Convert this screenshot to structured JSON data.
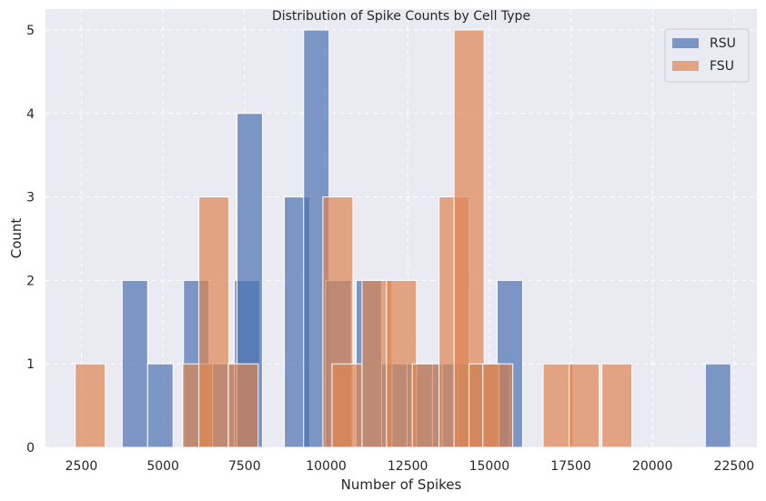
{
  "chart_data": {
    "type": "histogram",
    "title": "Distribution of Spike Counts by Cell Type",
    "xlabel": "Number of Spikes",
    "ylabel": "Count",
    "xlim": [
      1400,
      23200
    ],
    "ylim": [
      0,
      5.25
    ],
    "x_ticks": [
      2500,
      5000,
      7500,
      10000,
      12500,
      15000,
      17500,
      20000,
      22500
    ],
    "y_ticks": [
      0,
      1,
      2,
      3,
      4,
      5
    ],
    "grid": true,
    "legend_position": "top-right",
    "series": [
      {
        "name": "RSU",
        "color": "#4c72b0",
        "bin_width": 780,
        "bins": [
          {
            "x0": 3750,
            "count": 2
          },
          {
            "x0": 4530,
            "count": 1
          },
          {
            "x0": 5630,
            "count": 2
          },
          {
            "x0": 6410,
            "count": 1
          },
          {
            "x0": 7190,
            "count": 2
          },
          {
            "x0": 7270,
            "count": 4
          },
          {
            "x0": 8720,
            "count": 3
          },
          {
            "x0": 9310,
            "count": 5
          },
          {
            "x0": 9990,
            "count": 2
          },
          {
            "x0": 10920,
            "count": 2
          },
          {
            "x0": 11700,
            "count": 1
          },
          {
            "x0": 12480,
            "count": 1
          },
          {
            "x0": 13260,
            "count": 1
          },
          {
            "x0": 14040,
            "count": 1
          },
          {
            "x0": 14820,
            "count": 1
          },
          {
            "x0": 15240,
            "count": 2
          },
          {
            "x0": 21620,
            "count": 1
          }
        ]
      },
      {
        "name": "FSU",
        "color": "#dd8452",
        "bin_width": 920,
        "bins": [
          {
            "x0": 2310,
            "count": 1
          },
          {
            "x0": 5600,
            "count": 1
          },
          {
            "x0": 6100,
            "count": 3
          },
          {
            "x0": 7000,
            "count": 1
          },
          {
            "x0": 9900,
            "count": 3
          },
          {
            "x0": 10180,
            "count": 1
          },
          {
            "x0": 11100,
            "count": 2
          },
          {
            "x0": 11850,
            "count": 2
          },
          {
            "x0": 12640,
            "count": 1
          },
          {
            "x0": 13460,
            "count": 3
          },
          {
            "x0": 13920,
            "count": 5
          },
          {
            "x0": 14380,
            "count": 1
          },
          {
            "x0": 14800,
            "count": 1
          },
          {
            "x0": 16650,
            "count": 1
          },
          {
            "x0": 17450,
            "count": 1
          },
          {
            "x0": 18450,
            "count": 1
          }
        ]
      }
    ]
  }
}
